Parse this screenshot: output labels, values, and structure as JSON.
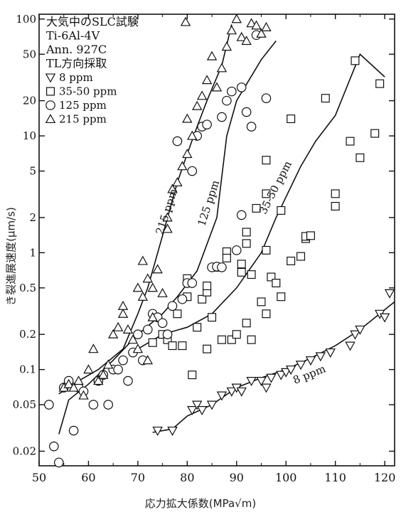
{
  "chart_data": {
    "type": "scatter",
    "x_scale": "linear",
    "y_scale": "log",
    "xlim": [
      50,
      122
    ],
    "ylim": [
      0.015,
      110
    ],
    "xlabel": "応力拡大係数(MPa√m)",
    "ylabel": "き裂進展速度(μm/s)",
    "x_ticks": [
      50,
      60,
      70,
      80,
      90,
      100,
      110,
      120
    ],
    "y_ticks": [
      {
        "value": 0.02,
        "label": "0.02"
      },
      {
        "value": 0.05,
        "label": "0.05"
      },
      {
        "value": 0.1,
        "label": "0.1"
      },
      {
        "value": 0.2,
        "label": "0.2"
      },
      {
        "value": 0.5,
        "label": "0.5"
      },
      {
        "value": 1,
        "label": "1"
      },
      {
        "value": 2,
        "label": "2"
      },
      {
        "value": 5,
        "label": "5"
      },
      {
        "value": 10,
        "label": "10"
      },
      {
        "value": 20,
        "label": "20"
      },
      {
        "value": 50,
        "label": "50"
      },
      {
        "value": 100,
        "label": "100"
      }
    ],
    "legend_position": "top-left",
    "legend_header": [
      "大気中のSLC試験",
      "Ti-6Al-4V",
      "Ann. 927C",
      "TL方向採取"
    ],
    "series": [
      {
        "name": "8 ppm",
        "marker": "triangle-down",
        "points": [
          [
            74,
            0.03
          ],
          [
            77,
            0.03
          ],
          [
            81,
            0.045
          ],
          [
            82,
            0.05
          ],
          [
            83,
            0.045
          ],
          [
            85,
            0.05
          ],
          [
            87,
            0.06
          ],
          [
            89,
            0.065
          ],
          [
            90,
            0.07
          ],
          [
            91,
            0.065
          ],
          [
            93,
            0.08
          ],
          [
            95,
            0.08
          ],
          [
            96,
            0.07
          ],
          [
            97,
            0.085
          ],
          [
            99,
            0.09
          ],
          [
            100,
            0.095
          ],
          [
            101,
            0.1
          ],
          [
            103,
            0.11
          ],
          [
            105,
            0.12
          ],
          [
            107,
            0.13
          ],
          [
            109,
            0.14
          ],
          [
            113,
            0.16
          ],
          [
            114,
            0.2
          ],
          [
            115,
            0.22
          ],
          [
            119,
            0.3
          ],
          [
            120,
            0.28
          ],
          [
            121,
            0.45
          ]
        ]
      },
      {
        "name": "35-50 ppm",
        "marker": "square",
        "points": [
          [
            73,
            0.17
          ],
          [
            75,
            0.2
          ],
          [
            76,
            0.18
          ],
          [
            77,
            0.16
          ],
          [
            78,
            0.3
          ],
          [
            79,
            0.16
          ],
          [
            80,
            0.42
          ],
          [
            80,
            0.6
          ],
          [
            81,
            0.09
          ],
          [
            82,
            0.23
          ],
          [
            83,
            0.4
          ],
          [
            84,
            0.46
          ],
          [
            84,
            0.52
          ],
          [
            84,
            0.15
          ],
          [
            85,
            0.28
          ],
          [
            86,
            0.75
          ],
          [
            87,
            0.18
          ],
          [
            88,
            1.02
          ],
          [
            88,
            0.9
          ],
          [
            89,
            0.18
          ],
          [
            90,
            0.2
          ],
          [
            91,
            0.8
          ],
          [
            91,
            0.68
          ],
          [
            92,
            1.5
          ],
          [
            92,
            0.25
          ],
          [
            92,
            1.2
          ],
          [
            93,
            0.65
          ],
          [
            93,
            0.18
          ],
          [
            94,
            2.4
          ],
          [
            95,
            0.38
          ],
          [
            96,
            1.05
          ],
          [
            96,
            0.3
          ],
          [
            96,
            6.2
          ],
          [
            96,
            3.2
          ],
          [
            97,
            0.62
          ],
          [
            98,
            0.55
          ],
          [
            99,
            0.42
          ],
          [
            99,
            2.3
          ],
          [
            101,
            0.85
          ],
          [
            101,
            14
          ],
          [
            103,
            0.93
          ],
          [
            104,
            1.32
          ],
          [
            104,
            1.38
          ],
          [
            105,
            1.4
          ],
          [
            108,
            21
          ],
          [
            110,
            3.2
          ],
          [
            110,
            2.5
          ],
          [
            113,
            9
          ],
          [
            114,
            44
          ],
          [
            115,
            6.5
          ],
          [
            118,
            10.5
          ],
          [
            119,
            28
          ]
        ]
      },
      {
        "name": "125 ppm",
        "marker": "circle",
        "points": [
          [
            52,
            0.05
          ],
          [
            53,
            0.022
          ],
          [
            54,
            0.016
          ],
          [
            55,
            0.07
          ],
          [
            56,
            0.08
          ],
          [
            57,
            0.03
          ],
          [
            58,
            0.07
          ],
          [
            59,
            0.065
          ],
          [
            61,
            0.05
          ],
          [
            62,
            0.08
          ],
          [
            63,
            0.09
          ],
          [
            64,
            0.05
          ],
          [
            65,
            0.1
          ],
          [
            66,
            0.1
          ],
          [
            67,
            0.12
          ],
          [
            68,
            0.08
          ],
          [
            69,
            0.14
          ],
          [
            70,
            0.2
          ],
          [
            71,
            0.12
          ],
          [
            72,
            0.22
          ],
          [
            73,
            0.3
          ],
          [
            74,
            0.28
          ],
          [
            75,
            0.25
          ],
          [
            76,
            0.2
          ],
          [
            77,
            0.35
          ],
          [
            78,
            9
          ],
          [
            79,
            0.4
          ],
          [
            80,
            0.55
          ],
          [
            81,
            5
          ],
          [
            81,
            0.55
          ],
          [
            82,
            10
          ],
          [
            83,
            12
          ],
          [
            84,
            12.5
          ],
          [
            85,
            0.75
          ],
          [
            86,
            0.76
          ],
          [
            87,
            0.75
          ],
          [
            87,
            14.5
          ],
          [
            88,
            20
          ],
          [
            89,
            24
          ],
          [
            90,
            1.05
          ],
          [
            91,
            2.1
          ],
          [
            91,
            26
          ],
          [
            92,
            16
          ],
          [
            93,
            12
          ],
          [
            94,
            73
          ],
          [
            96,
            21
          ]
        ]
      },
      {
        "name": "215 ppm",
        "marker": "triangle-up",
        "points": [
          [
            55,
            0.07
          ],
          [
            56,
            0.075
          ],
          [
            57,
            0.07
          ],
          [
            58,
            0.08
          ],
          [
            59,
            0.06
          ],
          [
            60,
            0.1
          ],
          [
            61,
            0.15
          ],
          [
            62,
            0.08
          ],
          [
            63,
            0.09
          ],
          [
            64,
            0.11
          ],
          [
            65,
            0.2
          ],
          [
            66,
            0.23
          ],
          [
            67,
            0.3
          ],
          [
            67,
            0.35
          ],
          [
            68,
            0.22
          ],
          [
            69,
            0.18
          ],
          [
            70,
            0.15
          ],
          [
            70,
            0.5
          ],
          [
            71,
            0.42
          ],
          [
            71,
            0.85
          ],
          [
            72,
            0.6
          ],
          [
            72,
            0.12
          ],
          [
            73,
            0.28
          ],
          [
            73,
            0.5
          ],
          [
            74,
            0.72
          ],
          [
            75,
            0.45
          ],
          [
            76,
            1.6
          ],
          [
            76,
            2
          ],
          [
            77,
            3.5
          ],
          [
            78,
            4
          ],
          [
            79,
            5.5
          ],
          [
            80,
            7
          ],
          [
            80,
            14
          ],
          [
            81,
            10
          ],
          [
            82,
            18
          ],
          [
            83,
            22
          ],
          [
            84,
            30
          ],
          [
            85,
            48
          ],
          [
            86,
            26
          ],
          [
            87,
            38
          ],
          [
            88,
            58
          ],
          [
            89,
            80
          ],
          [
            90,
            100
          ],
          [
            91,
            70
          ],
          [
            92,
            65
          ],
          [
            93,
            92
          ],
          [
            94,
            88
          ],
          [
            95,
            75
          ],
          [
            96,
            85
          ]
        ]
      }
    ],
    "fit_lines": [
      {
        "label": "8 ppm",
        "points": [
          [
            73,
            0.029
          ],
          [
            77,
            0.031
          ],
          [
            80,
            0.04
          ],
          [
            85,
            0.05
          ],
          [
            90,
            0.07
          ],
          [
            95,
            0.085
          ],
          [
            100,
            0.1
          ],
          [
            105,
            0.125
          ],
          [
            110,
            0.16
          ],
          [
            115,
            0.22
          ],
          [
            122,
            0.38
          ]
        ]
      },
      {
        "label": "35-50 ppm",
        "points": [
          [
            70,
            0.15
          ],
          [
            75,
            0.2
          ],
          [
            80,
            0.23
          ],
          [
            85,
            0.3
          ],
          [
            90,
            0.5
          ],
          [
            95,
            1.0
          ],
          [
            98,
            2.0
          ],
          [
            103,
            5.5
          ],
          [
            106,
            9
          ],
          [
            110,
            15
          ],
          [
            115,
            50
          ],
          [
            120,
            32
          ]
        ]
      },
      {
        "label": "125 ppm",
        "points": [
          [
            54,
            0.028
          ],
          [
            56,
            0.055
          ],
          [
            60,
            0.075
          ],
          [
            65,
            0.12
          ],
          [
            70,
            0.2
          ],
          [
            75,
            0.3
          ],
          [
            78,
            0.42
          ],
          [
            82,
            0.7
          ],
          [
            86,
            2
          ],
          [
            88,
            10
          ],
          [
            90,
            20
          ],
          [
            95,
            45
          ],
          [
            98,
            65
          ]
        ]
      },
      {
        "label": "215 ppm",
        "points": [
          [
            54,
            0.062
          ],
          [
            58,
            0.08
          ],
          [
            62,
            0.1
          ],
          [
            67,
            0.15
          ],
          [
            70,
            0.3
          ],
          [
            72,
            0.5
          ],
          [
            75,
            1.4
          ],
          [
            78,
            4
          ],
          [
            80,
            7
          ],
          [
            82,
            12
          ],
          [
            84,
            20
          ],
          [
            87,
            40
          ],
          [
            89,
            90
          ]
        ]
      }
    ]
  },
  "axes": {
    "xlabel": "応力拡大係数(MPa√m)",
    "ylabel": "き裂進展速度(μm/s)"
  }
}
